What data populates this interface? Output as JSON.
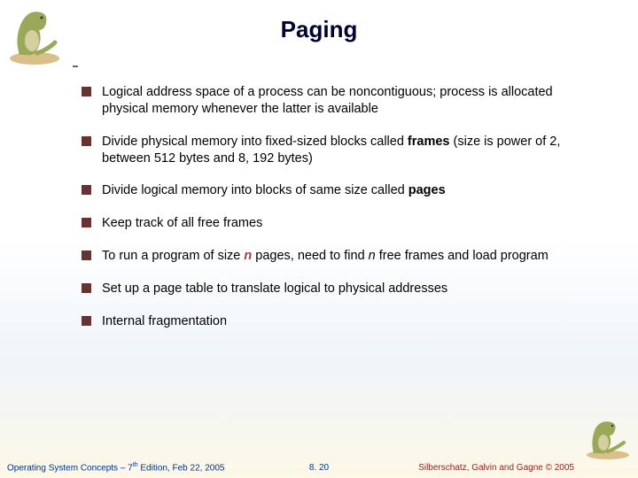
{
  "title": "Paging",
  "bullets": [
    {
      "html": "Logical address space of a process can be noncontiguous; process is allocated physical memory whenever the latter is available"
    },
    {
      "html": "Divide physical memory into fixed-sized blocks called <span class='bold'>frames</span> (size is power of 2, between 512 bytes and 8, 192 bytes)"
    },
    {
      "html": "Divide logical memory into blocks of same size called <span class='bold'>pages</span>"
    },
    {
      "html": "Keep track of all free frames"
    },
    {
      "html": "To run a program of size <span class='italic-n'>n</span> pages, need to find <span class='italic-n2'>n</span> free frames and load program"
    },
    {
      "html": "Set up a page table to translate logical to physical addresses"
    },
    {
      "html": "Internal fragmentation"
    }
  ],
  "footer": {
    "left_pre": "Operating System Concepts – 7",
    "left_sup": "th",
    "left_post": " Edition, Feb 22, 2005",
    "center": "8. 20",
    "right": "Silberschatz, Galvin and Gagne © 2005"
  },
  "colors": {
    "bullet_marker": "#663333",
    "title_color": "#000033",
    "footer_left": "#003388",
    "footer_right": "#a02020"
  },
  "dino": {
    "body": "#9aa85a",
    "belly": "#d4cfa0",
    "sand": "#d8c088"
  }
}
